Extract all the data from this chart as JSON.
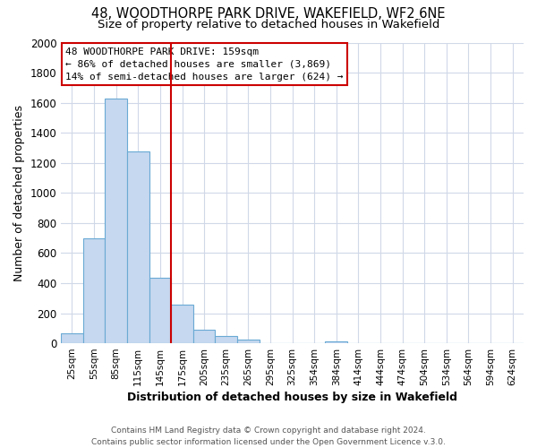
{
  "title": "48, WOODTHORPE PARK DRIVE, WAKEFIELD, WF2 6NE",
  "subtitle": "Size of property relative to detached houses in Wakefield",
  "xlabel": "Distribution of detached houses by size in Wakefield",
  "ylabel": "Number of detached properties",
  "bar_labels": [
    "25sqm",
    "55sqm",
    "85sqm",
    "115sqm",
    "145sqm",
    "175sqm",
    "205sqm",
    "235sqm",
    "265sqm",
    "295sqm",
    "325sqm",
    "354sqm",
    "384sqm",
    "414sqm",
    "444sqm",
    "474sqm",
    "504sqm",
    "534sqm",
    "564sqm",
    "594sqm",
    "624sqm"
  ],
  "bar_values": [
    65,
    695,
    1630,
    1275,
    435,
    255,
    90,
    50,
    25,
    0,
    0,
    0,
    15,
    0,
    0,
    0,
    0,
    0,
    0,
    0,
    0
  ],
  "bar_color": "#c5d8ef",
  "bar_edgecolor": "#6aaad4",
  "ylim": [
    0,
    2000
  ],
  "yticks": [
    0,
    200,
    400,
    600,
    800,
    1000,
    1200,
    1400,
    1600,
    1800,
    2000
  ],
  "red_line_x": 4.5,
  "annotation_title": "48 WOODTHORPE PARK DRIVE: 159sqm",
  "annotation_line1": "← 86% of detached houses are smaller (3,869)",
  "annotation_line2": "14% of semi-detached houses are larger (624) →",
  "annotation_box_color": "#ffffff",
  "annotation_box_edgecolor": "#cc0000",
  "footer1": "Contains HM Land Registry data © Crown copyright and database right 2024.",
  "footer2": "Contains public sector information licensed under the Open Government Licence v.3.0.",
  "background_color": "#ffffff",
  "grid_color": "#d0d8e8"
}
